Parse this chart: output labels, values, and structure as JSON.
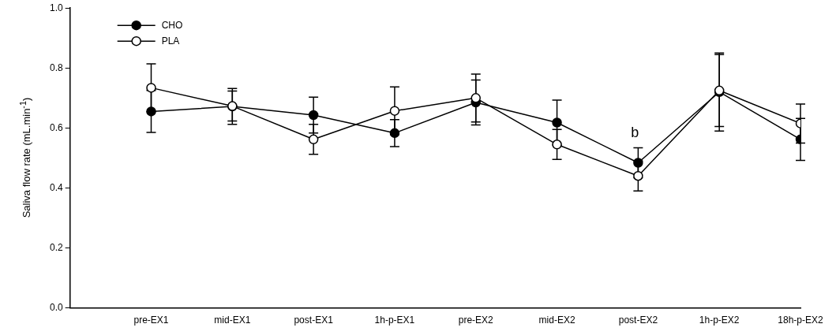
{
  "chart_data": {
    "type": "line",
    "ylabel": "Saliva flow rate (mL.min$^{-1}$)",
    "categories": [
      "pre-EX1",
      "mid-EX1",
      "post-EX1",
      "1h-p-EX1",
      "pre-EX2",
      "mid-EX2",
      "post-EX2",
      "1h-p-EX2",
      "18h-p-EX2"
    ],
    "series": [
      {
        "name": "CHO",
        "color": "#000000",
        "values": [
          0.655,
          0.672,
          0.643,
          0.583,
          0.685,
          0.618,
          0.484,
          0.72,
          0.562
        ],
        "errors": [
          0.07,
          0.06,
          0.06,
          0.045,
          0.075,
          0.075,
          0.05,
          0.13,
          0.07
        ]
      },
      {
        "name": "PLA",
        "color": "#000000",
        "values": [
          0.734,
          0.673,
          0.562,
          0.657,
          0.7,
          0.545,
          0.44,
          0.725,
          0.615
        ],
        "errors": [
          0.08,
          0.05,
          0.05,
          0.08,
          0.08,
          0.05,
          0.05,
          0.12,
          0.065
        ]
      }
    ],
    "ylim": [
      0,
      1
    ],
    "yticks": [
      {
        "value": 0,
        "label": "0.0"
      },
      0.2,
      0.4,
      0.6,
      0.8,
      {
        "value": 1,
        "label": "1.0"
      }
    ],
    "annotations": [
      "b"
    ],
    "legend": "top left",
    "marker": "circle",
    "line_style": "solid",
    "grid": false
  }
}
